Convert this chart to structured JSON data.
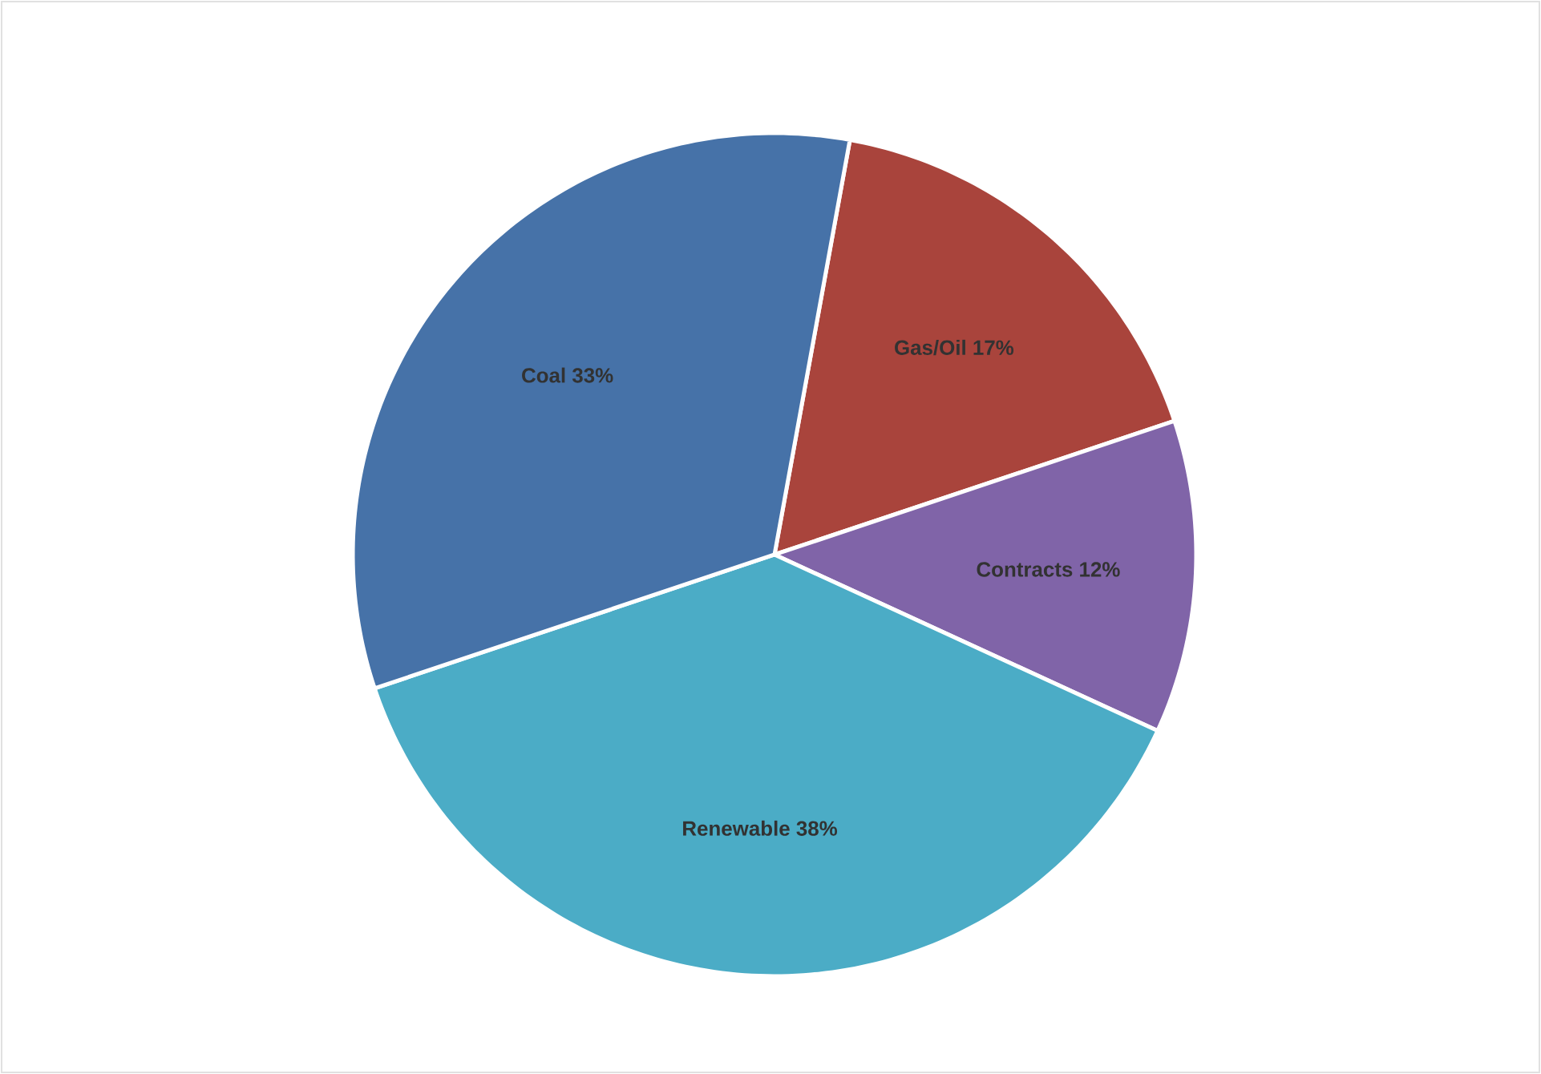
{
  "chart_data": {
    "type": "pie",
    "categories": [
      "Gas/Oil",
      "Contracts",
      "Renewable",
      "Coal"
    ],
    "values": [
      17,
      12,
      38,
      33
    ],
    "value_labels": [
      "17%",
      "12%",
      "38%",
      "33%"
    ],
    "colors": [
      "#a9443c",
      "#8064a8",
      "#4bacc6",
      "#4672a8"
    ]
  }
}
